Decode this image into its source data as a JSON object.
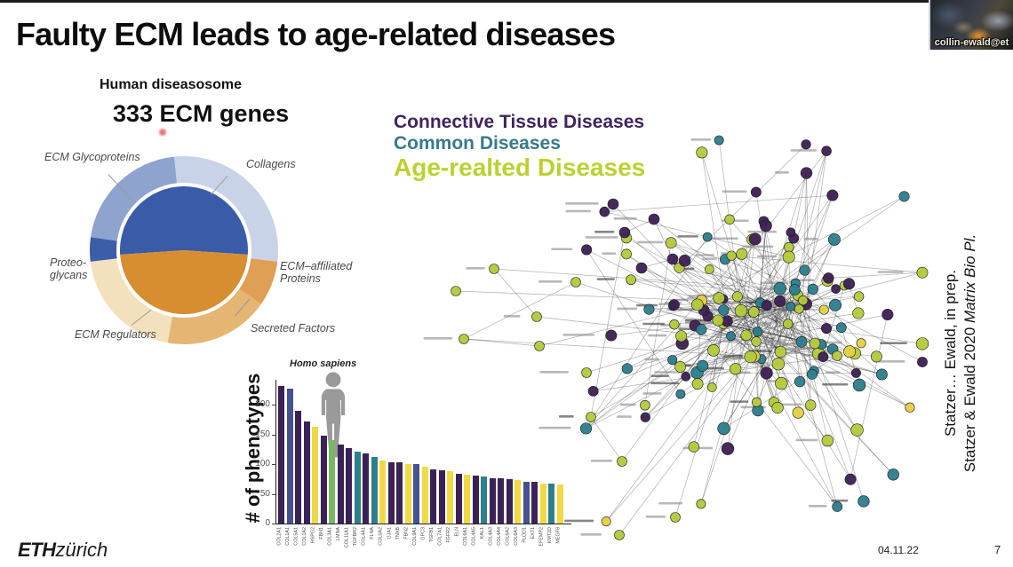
{
  "slide": {
    "title": "Faulty ECM leads to age-related diseases",
    "webcam": {
      "caption": "collin-ewald@et"
    },
    "citation": {
      "line1": "Statzer…  Ewald, in prep.",
      "line2_prefix": "Statzer & Ewald 2020 ",
      "line2_journal": "Matrix Bio Pl."
    },
    "footer": {
      "logo_strong": "ETH",
      "logo_light": "zürich",
      "date": "04.11.22",
      "page_number": "7"
    }
  },
  "diseasome": {
    "heading": "Human diseasosome",
    "gene_count_label": "333 ECM genes",
    "donut_labels": {
      "glycoproteins": "ECM Glycoproteins",
      "collagens": "Collagens",
      "proteoglycans_line1": "Proteo-",
      "proteoglycans_line2": "glycans",
      "affiliated_line1": "ECM–affiliated",
      "affiliated_line2": "Proteins",
      "regulators": "ECM Regulators",
      "secreted": "Secreted Factors"
    }
  },
  "chart_data": [
    {
      "type": "pie",
      "title": "Human diseasosome",
      "subtitle": "333 ECM genes",
      "outer_ring": [
        {
          "label": "Collagens",
          "color": "#c9d3e8",
          "start": -6,
          "end": 97
        },
        {
          "label": "ECM–affiliated Proteins",
          "color": "#dfa055",
          "start": 97,
          "end": 125
        },
        {
          "label": "Secreted Factors",
          "color": "#e4b573",
          "start": 125,
          "end": 190
        },
        {
          "label": "ECM Regulators",
          "color": "#f3e0bd",
          "start": 190,
          "end": 263
        },
        {
          "label": "Proteo-glycans",
          "color": "#3c5ea9",
          "start": 263,
          "end": 278
        },
        {
          "label": "ECM Glycoproteins",
          "color": "#8ea4cf",
          "start": 278,
          "end": 354
        }
      ],
      "inner_disc": [
        {
          "color": "#3a5ca8",
          "start": 266,
          "end": 454
        },
        {
          "color": "#d68e30",
          "start": 94,
          "end": 266
        }
      ]
    },
    {
      "type": "bar",
      "species_label": "Homo sapiens",
      "ylabel": "# of phenotypes",
      "yticks": [
        0,
        50,
        100,
        150,
        200
      ],
      "ylim": [
        0,
        240
      ],
      "categories": [
        "COL2A1",
        "COL1A1",
        "COL5A1",
        "COL1A2",
        "HSPG2",
        "FBN1",
        "COL3A1",
        "LMNA",
        "COL11A1",
        "TGFBR2",
        "COL4A1",
        "FLNA",
        "COL5A2",
        "GJA1",
        "TNXB",
        "FBN2",
        "COL9A1",
        "GPC3",
        "TGFB1",
        "COL7A1",
        "FGFR2",
        "ELN",
        "COL6A1",
        "COL4A5",
        "KAL1",
        "COL4A3",
        "COL4A4",
        "COL6A2",
        "COL6A3",
        "PLOD1",
        "EXT1",
        "EFEMP2",
        "KMT2D",
        "MEGF8"
      ],
      "values": [
        232,
        228,
        190,
        172,
        163,
        148,
        141,
        134,
        128,
        122,
        118,
        113,
        106,
        104,
        103,
        101,
        100,
        96,
        92,
        90,
        88,
        84,
        83,
        81,
        79,
        77,
        76,
        75,
        73,
        71,
        70,
        68,
        67,
        66
      ],
      "bar_colors": [
        "purple",
        "blue",
        "purple",
        "purple",
        "yellow",
        "purple",
        "green",
        "purple",
        "purple",
        "teal",
        "purple",
        "teal",
        "yellow",
        "purple",
        "purple",
        "yellow",
        "blue",
        "yellow",
        "purple",
        "purple",
        "yellow",
        "purple",
        "yellow",
        "purple",
        "teal",
        "purple",
        "purple",
        "purple",
        "yellow",
        "blue",
        "purple",
        "yellow",
        "teal",
        "yellow"
      ],
      "palette": {
        "purple": "#3b2256",
        "blue": "#46518e",
        "teal": "#2e7f8c",
        "green": "#79b862",
        "yellow": "#f0d944"
      }
    },
    {
      "type": "network",
      "legend": [
        {
          "label": "Connective Tissue Diseases",
          "color": "#41245e"
        },
        {
          "label": "Common Diseases",
          "color": "#38798c"
        },
        {
          "label": "Age-realted Diseases",
          "color": "#bdd02f"
        }
      ],
      "node_palette": {
        "connective": "#3d2154",
        "common": "#2e7e8c",
        "age": "#b4c93c",
        "highlight": "#e3cf45"
      },
      "approx_node_count": 170,
      "approx_edge_count": 300
    }
  ]
}
